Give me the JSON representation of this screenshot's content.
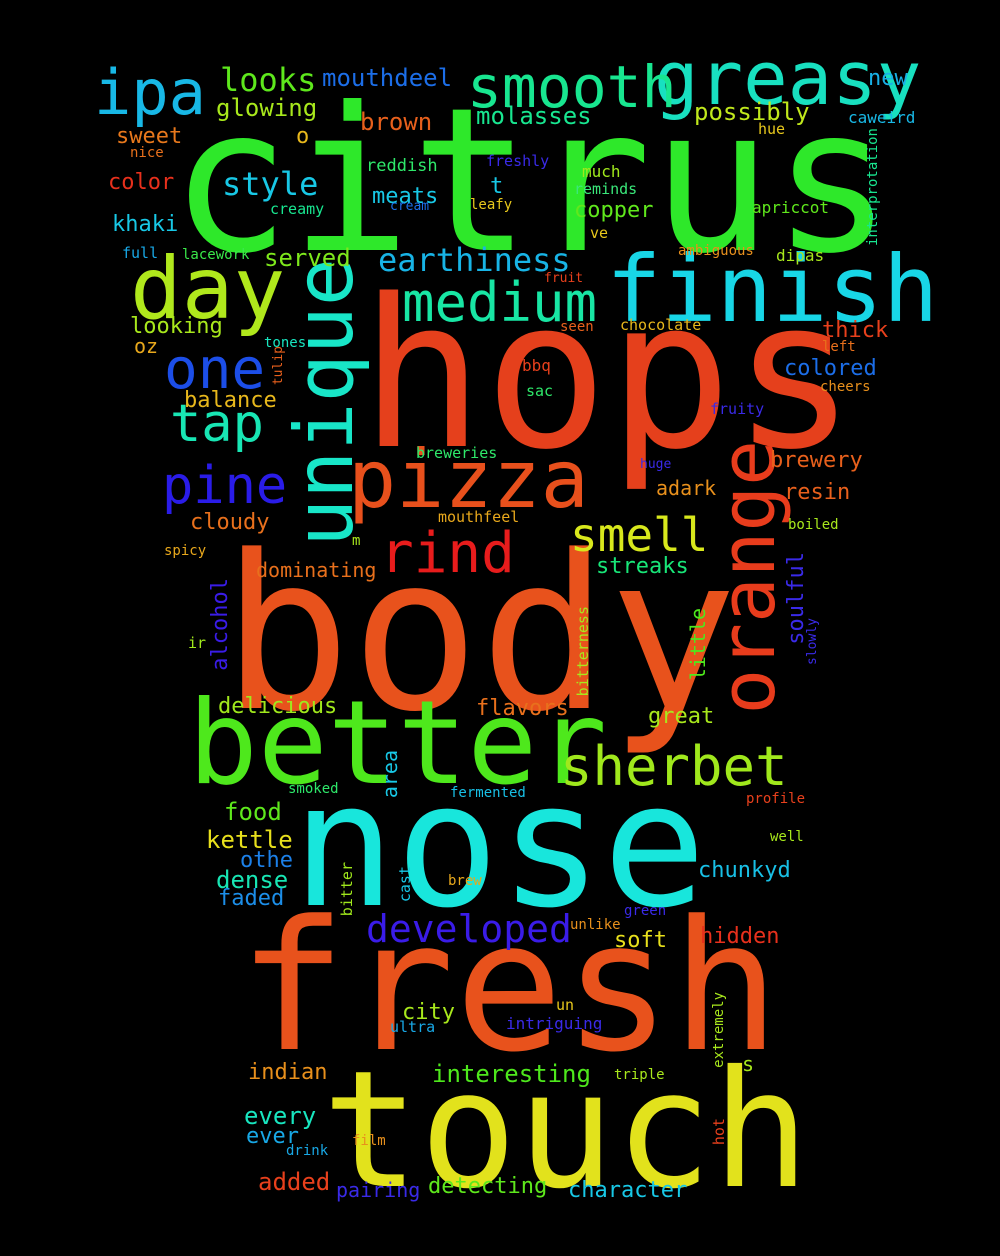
{
  "words": [
    {
      "text": "citrus",
      "color": "#2ee82a"
    },
    {
      "text": "hops",
      "color": "#e5401c"
    },
    {
      "text": "body",
      "color": "#e8521c"
    },
    {
      "text": "nose",
      "color": "#18e6dc"
    },
    {
      "text": "fresh",
      "color": "#e8521c"
    },
    {
      "text": "touch",
      "color": "#e2e21c"
    },
    {
      "text": "better",
      "color": "#4ee81c"
    },
    {
      "text": "finish",
      "color": "#18d6e6"
    },
    {
      "text": "unique",
      "color": "#18e6c8"
    },
    {
      "text": "orange",
      "color": "#e83c1c"
    },
    {
      "text": "pizza",
      "color": "#e8501c"
    },
    {
      "text": "greasy",
      "color": "#18e0c0"
    },
    {
      "text": "smooth",
      "color": "#18e690"
    },
    {
      "text": "ipa",
      "color": "#18b8e6"
    },
    {
      "text": "day",
      "color": "#b0e81c"
    },
    {
      "text": "medium",
      "color": "#18e6a4"
    },
    {
      "text": "one",
      "color": "#1c4ee8"
    },
    {
      "text": "tap",
      "color": "#18e6b4"
    },
    {
      "text": "pine",
      "color": "#2a1ce8"
    },
    {
      "text": "rind",
      "color": "#e81c1c"
    },
    {
      "text": "smell",
      "color": "#d8e81c"
    },
    {
      "text": "sherbet",
      "color": "#a0e81c"
    },
    {
      "text": "developed",
      "color": "#3a1ce8"
    },
    {
      "text": "earthiness",
      "color": "#18b4e6"
    },
    {
      "text": "style",
      "color": "#18c8e6"
    },
    {
      "text": "looks",
      "color": "#5ee81c"
    },
    {
      "text": "mouthdeel",
      "color": "#1c6ee8"
    },
    {
      "text": "glowing",
      "color": "#a8e81c"
    },
    {
      "text": "brown",
      "color": "#e8601c"
    },
    {
      "text": "molasses",
      "color": "#18e690"
    },
    {
      "text": "possibly",
      "color": "#c0e81c"
    },
    {
      "text": "new",
      "color": "#18b0e6"
    },
    {
      "text": "sweet",
      "color": "#e8781c"
    },
    {
      "text": "color",
      "color": "#e8301c"
    },
    {
      "text": "khaki",
      "color": "#18c8e6"
    },
    {
      "text": "reddish",
      "color": "#2ee86a"
    },
    {
      "text": "freshly",
      "color": "#3a2ae8"
    },
    {
      "text": "much",
      "color": "#a0e81c"
    },
    {
      "text": "reminds",
      "color": "#3ae87a"
    },
    {
      "text": "meats",
      "color": "#18c8e6"
    },
    {
      "text": "copper",
      "color": "#60e81c"
    },
    {
      "text": "served",
      "color": "#7ee81c"
    },
    {
      "text": "balance",
      "color": "#e8b81c"
    },
    {
      "text": "looking",
      "color": "#a8e81c"
    },
    {
      "text": "oz",
      "color": "#e8a81c"
    },
    {
      "text": "colored",
      "color": "#1c6ee8"
    },
    {
      "text": "thick",
      "color": "#e8401c"
    },
    {
      "text": "cloudy",
      "color": "#e8701c"
    },
    {
      "text": "brewery",
      "color": "#e8601c"
    },
    {
      "text": "resin",
      "color": "#e8601c"
    },
    {
      "text": "adark",
      "color": "#e8901c"
    },
    {
      "text": "dominating",
      "color": "#e8701c"
    },
    {
      "text": "streaks",
      "color": "#18e678"
    },
    {
      "text": "alcohol",
      "color": "#3a1ce8"
    },
    {
      "text": "soulful",
      "color": "#3a2ae8"
    },
    {
      "text": "little",
      "color": "#4ee81c"
    },
    {
      "text": "delicious",
      "color": "#a0e81c"
    },
    {
      "text": "flavors",
      "color": "#e8701c"
    },
    {
      "text": "great",
      "color": "#a8e81c"
    },
    {
      "text": "food",
      "color": "#5ee81c"
    },
    {
      "text": "kettle",
      "color": "#e8e01c"
    },
    {
      "text": "othe",
      "color": "#1c80e8"
    },
    {
      "text": "dense",
      "color": "#18e6b4"
    },
    {
      "text": "faded",
      "color": "#1c8ee8"
    },
    {
      "text": "chunkyd",
      "color": "#18c0e6"
    },
    {
      "text": "area",
      "color": "#18c8e6"
    },
    {
      "text": "hidden",
      "color": "#e8301c"
    },
    {
      "text": "soft",
      "color": "#e8e01c"
    },
    {
      "text": "city",
      "color": "#a8e81c"
    },
    {
      "text": "indian",
      "color": "#e8901c"
    },
    {
      "text": "interesting",
      "color": "#4ee81c"
    },
    {
      "text": "every",
      "color": "#18e6c0"
    },
    {
      "text": "ever",
      "color": "#18a8e6"
    },
    {
      "text": "added",
      "color": "#e8401c"
    },
    {
      "text": "pairing",
      "color": "#3a2ae8"
    },
    {
      "text": "detecting",
      "color": "#5ee81c"
    },
    {
      "text": "character",
      "color": "#18c8e6"
    },
    {
      "text": "caweird",
      "color": "#18b8e6"
    },
    {
      "text": "interprotation",
      "color": "#18e690"
    },
    {
      "text": "hue",
      "color": "#e8c81c"
    },
    {
      "text": "nice",
      "color": "#e8701c"
    },
    {
      "text": "o",
      "color": "#e8b81c"
    },
    {
      "text": "t",
      "color": "#18c8e6"
    },
    {
      "text": "creamy",
      "color": "#18e690"
    },
    {
      "text": "cream",
      "color": "#1c6ee8"
    },
    {
      "text": "leafy",
      "color": "#e8c81c"
    },
    {
      "text": "apriccot",
      "color": "#60e81c"
    },
    {
      "text": "ve",
      "color": "#e8c81c"
    },
    {
      "text": "full",
      "color": "#18a8e6"
    },
    {
      "text": "lacework",
      "color": "#3ae84a"
    },
    {
      "text": "ambiguous",
      "color": "#e8901c"
    },
    {
      "text": "dipas",
      "color": "#a8e81c"
    },
    {
      "text": "fruit",
      "color": "#e8401c"
    },
    {
      "text": "chocolate",
      "color": "#e8b81c"
    },
    {
      "text": "seen",
      "color": "#e8601c"
    },
    {
      "text": "left",
      "color": "#e8701c"
    },
    {
      "text": "tones",
      "color": "#18e6c0"
    },
    {
      "text": "tulip",
      "color": "#e8601c"
    },
    {
      "text": "bbq",
      "color": "#e8401c"
    },
    {
      "text": "sac",
      "color": "#2ee86a"
    },
    {
      "text": "cheers",
      "color": "#e8901c"
    },
    {
      "text": "fruity",
      "color": "#3a2ae8"
    },
    {
      "text": "breweries",
      "color": "#2ee86a"
    },
    {
      "text": "huge",
      "color": "#3a2ae8"
    },
    {
      "text": "mouthfeel",
      "color": "#e8a81c"
    },
    {
      "text": "boiled",
      "color": "#a8e81c"
    },
    {
      "text": "spicy",
      "color": "#e8a81c"
    },
    {
      "text": "m",
      "color": "#a8e81c"
    },
    {
      "text": "ir",
      "color": "#a0e81c"
    },
    {
      "text": "bitterness",
      "color": "#a8e81c"
    },
    {
      "text": "slowly",
      "color": "#3a2ae8"
    },
    {
      "text": "smoked",
      "color": "#2ee86a"
    },
    {
      "text": "fermented",
      "color": "#18c0e6"
    },
    {
      "text": "profile",
      "color": "#e8401c"
    },
    {
      "text": "well",
      "color": "#a8e81c"
    },
    {
      "text": "bitter",
      "color": "#a0e81c"
    },
    {
      "text": "cast",
      "color": "#18c8e6"
    },
    {
      "text": "brew",
      "color": "#e8a81c"
    },
    {
      "text": "green",
      "color": "#3a2ae8"
    },
    {
      "text": "unlike",
      "color": "#e8901c"
    },
    {
      "text": "un",
      "color": "#e8c81c"
    },
    {
      "text": "ultra",
      "color": "#18a8e6"
    },
    {
      "text": "intriguing",
      "color": "#3a2ae8"
    },
    {
      "text": "extremely",
      "color": "#a8e81c"
    },
    {
      "text": "s",
      "color": "#a8e81c"
    },
    {
      "text": "triple",
      "color": "#a8e81c"
    },
    {
      "text": "film",
      "color": "#e8901c"
    },
    {
      "text": "drink",
      "color": "#18a8e6"
    },
    {
      "text": "hot",
      "color": "#e8401c"
    }
  ]
}
